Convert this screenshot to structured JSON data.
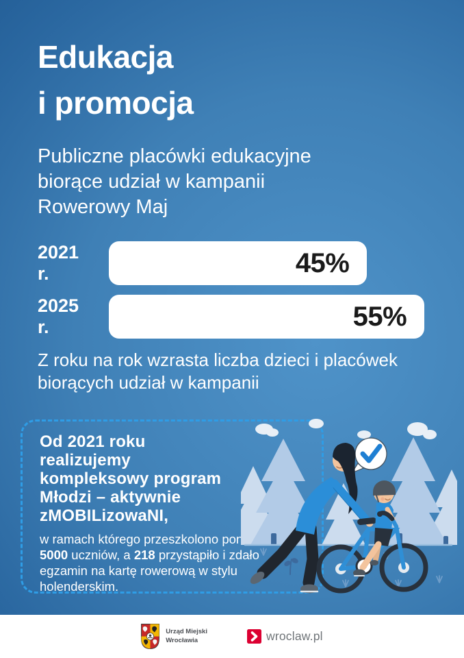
{
  "poster": {
    "title_lines": [
      "Edukacja",
      "i promocja"
    ],
    "subtitle_lines": [
      "Publiczne placówki edukacyjne",
      "biorące udział w kampanii",
      "Rowerowy Maj"
    ],
    "caption_lines": [
      "Z roku na rok wzrasta liczba dzieci i placówek",
      "biorących udział w kampanii"
    ]
  },
  "chart_data": {
    "type": "bar",
    "orientation": "horizontal",
    "title": "Publiczne placówki edukacyjne biorące udział w kampanii Rowerowy Maj",
    "categories": [
      "2021 r.",
      "2025 r."
    ],
    "values": [
      45,
      55
    ],
    "value_labels": [
      "45%",
      "55%"
    ],
    "unit": "%",
    "xlim": [
      0,
      58
    ],
    "grid": false,
    "bar_color": "#ffffff",
    "value_color": "#1a1a1a"
  },
  "highlight_box": {
    "heading_lines": [
      "Od 2021 roku",
      "realizujemy",
      "kompleksowy program",
      "Młodzi – aktywnie",
      "zMOBILizowaNI,"
    ],
    "body_prefix": "w ramach którego przeszkolono ponad ",
    "stat_students": "5000",
    "body_middle": " uczniów, a ",
    "stat_exams": "218",
    "body_suffix": " przystąpiło i zdało egzamin na kartę rowerową w stylu holenderskim."
  },
  "illustration": {
    "description": "adult teaching a child to ride a bicycle among pine trees, with a checkmark speech bubble"
  },
  "footer": {
    "city_office_line1": "Urząd Miejski",
    "city_office_line2": "Wrocławia",
    "portal_label": "wroclaw.pl"
  },
  "colors": {
    "background_dark": "#1d568e",
    "background_light": "#4f93c9",
    "dashed_border": "#2f9de6",
    "bar_fill": "#ffffff",
    "bar_value_text": "#1a1a1a",
    "text_white": "#ffffff",
    "wroclaw_red": "#dc0032",
    "footer_text": "#4b4e53"
  }
}
